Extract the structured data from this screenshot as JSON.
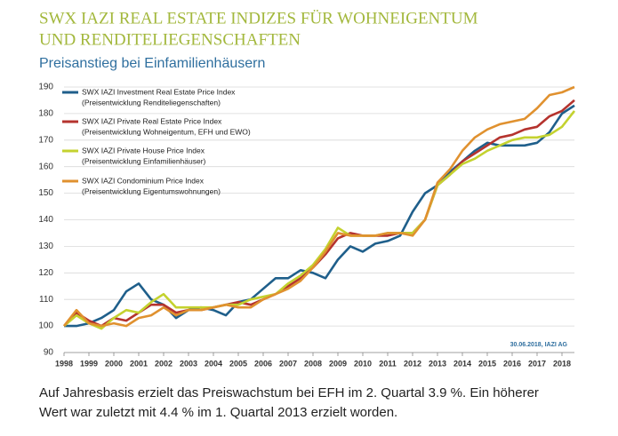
{
  "chart_data": {
    "type": "line",
    "title": [
      "SWX IAZI REAL ESTATE INDIZES FÜR WOHNEIGENTUM",
      "UND RENDITELIEGENSCHAFTEN"
    ],
    "subtitle": "Preisanstieg bei Einfamilienhäusern",
    "source": "30.06.2018, IAZI AG",
    "x": [
      1998,
      1998.5,
      1999,
      1999.5,
      2000,
      2000.5,
      2001,
      2001.5,
      2002,
      2002.5,
      2003,
      2003.5,
      2004,
      2004.5,
      2005,
      2005.5,
      2006,
      2006.5,
      2007,
      2007.5,
      2008,
      2008.5,
      2009,
      2009.5,
      2010,
      2010.5,
      2011,
      2011.5,
      2012,
      2012.5,
      2013,
      2013.5,
      2014,
      2014.5,
      2015,
      2015.5,
      2016,
      2016.5,
      2017,
      2017.5,
      2018,
      2018.5
    ],
    "xlim": [
      1998,
      2018.5
    ],
    "xticks": [
      1998,
      1999,
      2000,
      2001,
      2002,
      2003,
      2004,
      2005,
      2006,
      2007,
      2008,
      2009,
      2010,
      2011,
      2012,
      2013,
      2014,
      2015,
      2016,
      2017,
      2018
    ],
    "ylim": [
      90,
      190
    ],
    "yticks": [
      90,
      100,
      110,
      120,
      130,
      140,
      150,
      160,
      170,
      180,
      190
    ],
    "grid": true,
    "legend": "top-left",
    "series": [
      {
        "name": "SWX IAZI Investment Real Estate Price Index",
        "description": "(Preisentwicklung Renditeliegenschaften)",
        "color": "#1f5f8b",
        "values": [
          100,
          100,
          101,
          103,
          106,
          113,
          116,
          110,
          108,
          103,
          106,
          107,
          106,
          104,
          109,
          110,
          114,
          118,
          118,
          121,
          120,
          118,
          125,
          130,
          128,
          131,
          132,
          134,
          143,
          150,
          153,
          158,
          162,
          166,
          169,
          168,
          168,
          168,
          169,
          173,
          180,
          183
        ]
      },
      {
        "name": "SWX IAZI Private Real Estate Price Index",
        "description": "(Preisentwicklung Wohneigentum, EFH und EWO)",
        "color": "#b5332e",
        "values": [
          100,
          105,
          102,
          100,
          103,
          102,
          105,
          108,
          108,
          105,
          106,
          106,
          107,
          108,
          109,
          108,
          110,
          112,
          115,
          118,
          122,
          127,
          133,
          135,
          134,
          134,
          134,
          135,
          135,
          140,
          153,
          157,
          162,
          165,
          168,
          171,
          172,
          174,
          175,
          179,
          181,
          185
        ]
      },
      {
        "name": "SWX IAZI Private House Price Index",
        "description": "(Preisentwicklung Einfamilienhäuser)",
        "color": "#c4d22f",
        "values": [
          100,
          104,
          101,
          99,
          103,
          106,
          105,
          109,
          112,
          107,
          107,
          107,
          107,
          108,
          108,
          110,
          111,
          112,
          116,
          119,
          123,
          129,
          137,
          134,
          134,
          134,
          135,
          135,
          135,
          140,
          153,
          157,
          161,
          163,
          166,
          168,
          170,
          171,
          171,
          172,
          175,
          181
        ]
      },
      {
        "name": "SWX IAZI Condominium Price Index",
        "description": "(Preisentwicklung Eigentumswohnungen)",
        "color": "#e0912f",
        "values": [
          100,
          106,
          101,
          100,
          101,
          100,
          103,
          104,
          107,
          104,
          106,
          106,
          107,
          108,
          107,
          107,
          110,
          112,
          114,
          117,
          122,
          128,
          135,
          134,
          134,
          134,
          135,
          135,
          134,
          140,
          154,
          159,
          166,
          171,
          174,
          176,
          177,
          178,
          182,
          187,
          188,
          190
        ]
      }
    ],
    "footer": [
      "Auf Jahresbasis erzielt das Preiswachstum bei EFH im 2. Quartal 3.9 %. Ein höherer",
      "Wert war zuletzt mit 4.4 % im 1. Quartal 2013 erzielt worden."
    ]
  }
}
